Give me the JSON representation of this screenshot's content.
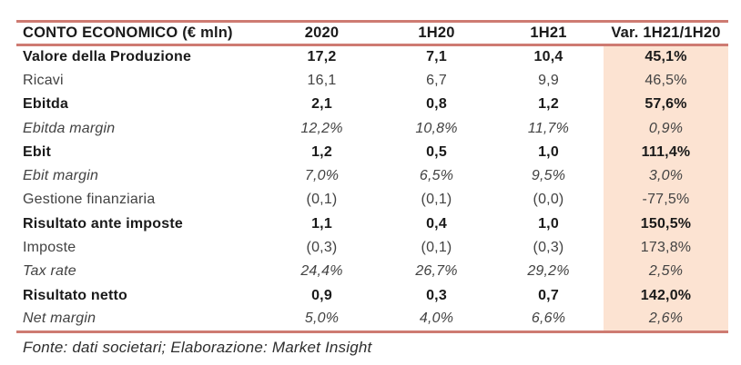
{
  "colors": {
    "rule": "#ce7b72",
    "highlight_bg": "#fce3d2",
    "text_bold": "#1a1a1a",
    "text_regular": "#424242"
  },
  "table": {
    "header": {
      "label": "CONTO ECONOMICO (€ mln)",
      "columns": [
        "2020",
        "1H20",
        "1H21",
        "Var. 1H21/1H20"
      ]
    },
    "rows": [
      {
        "label": "Valore della Produzione",
        "style": "bold",
        "values": [
          "17,2",
          "7,1",
          "10,4",
          "45,1%"
        ]
      },
      {
        "label": "Ricavi",
        "style": "regular",
        "values": [
          "16,1",
          "6,7",
          "9,9",
          "46,5%"
        ]
      },
      {
        "label": "Ebitda",
        "style": "bold",
        "values": [
          "2,1",
          "0,8",
          "1,2",
          "57,6%"
        ]
      },
      {
        "label": "Ebitda margin",
        "style": "italic",
        "values": [
          "12,2%",
          "10,8%",
          "11,7%",
          "0,9%"
        ]
      },
      {
        "label": "Ebit",
        "style": "bold",
        "values": [
          "1,2",
          "0,5",
          "1,0",
          "111,4%"
        ]
      },
      {
        "label": "Ebit margin",
        "style": "italic",
        "values": [
          "7,0%",
          "6,5%",
          "9,5%",
          "3,0%"
        ]
      },
      {
        "label": "Gestione finanziaria",
        "style": "regular",
        "values": [
          "(0,1)",
          "(0,1)",
          "(0,0)",
          "-77,5%"
        ]
      },
      {
        "label": "Risultato ante imposte",
        "style": "bold",
        "values": [
          "1,1",
          "0,4",
          "1,0",
          "150,5%"
        ]
      },
      {
        "label": "Imposte",
        "style": "regular",
        "values": [
          "(0,3)",
          "(0,1)",
          "(0,3)",
          "173,8%"
        ]
      },
      {
        "label": "Tax rate",
        "style": "italic",
        "values": [
          "24,4%",
          "26,7%",
          "29,2%",
          "2,5%"
        ]
      },
      {
        "label": "Risultato netto",
        "style": "bold",
        "values": [
          "0,9",
          "0,3",
          "0,7",
          "142,0%"
        ]
      },
      {
        "label": "Net margin",
        "style": "italic",
        "values": [
          "5,0%",
          "4,0%",
          "6,6%",
          "2,6%"
        ]
      }
    ],
    "footer": "Fonte: dati societari; Elaborazione: Market Insight"
  }
}
